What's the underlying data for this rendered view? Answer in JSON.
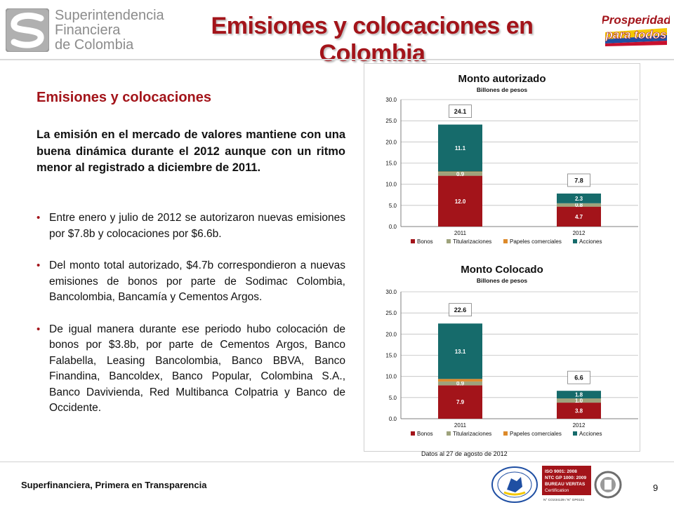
{
  "header": {
    "logo_lines": [
      "Superintendencia",
      "Financiera",
      "de Colombia"
    ],
    "title": "Emisiones y colocaciones en Colombia",
    "right_logo_lines": [
      "Prosperidad",
      "para todos"
    ]
  },
  "content": {
    "section_title": "Emisiones y colocaciones",
    "intro": "La emisión en el mercado de valores mantiene con una buena dinámica durante el 2012 aunque con un ritmo menor al registrado a diciembre de 2011.",
    "bullets": [
      "Entre enero y julio de 2012 se autorizaron nuevas emisiones por $7.8b y colocaciones por $6.6b.",
      "Del monto total autorizado, $4.7b correspondieron a nuevas emisiones de bonos por parte de Sodimac Colombia, Bancolombia, Bancamía y Cementos Argos.",
      "De igual manera durante ese periodo hubo colocación de bonos por $3.8b, por parte de Cementos Argos, Banco Falabella, Leasing Bancolombia, Banco BBVA, Banco Finandina, Bancoldex, Banco Popular, Colombina S.A., Banco Davivienda, Red Multibanca Colpatria y Banco de Occidente."
    ]
  },
  "colors": {
    "bonos": "#a3141a",
    "titularizaciones": "#9ea37c",
    "papeles": "#dd8a2a",
    "acciones": "#166b6b"
  },
  "chart_data": [
    {
      "type": "bar",
      "stacked": true,
      "title": "Monto autorizado",
      "subtitle": "Billones de pesos",
      "categories": [
        "2011",
        "2012"
      ],
      "ylim": [
        0,
        30
      ],
      "yticks": [
        "0.0",
        "5.0",
        "10.0",
        "15.0",
        "20.0",
        "25.0",
        "30.0"
      ],
      "grid": true,
      "legend": "bottom",
      "series": [
        {
          "name": "Bonos",
          "values": [
            12.0,
            4.7
          ],
          "labels": [
            "12.0",
            "4.7"
          ]
        },
        {
          "name": "Titularizaciones",
          "values": [
            0.9,
            0.8
          ],
          "labels": [
            "0.9",
            "0.8"
          ]
        },
        {
          "name": "Papeles comerciales",
          "values": [
            0.1,
            0.0
          ],
          "labels": [
            "",
            ""
          ]
        },
        {
          "name": "Acciones",
          "values": [
            11.1,
            2.3
          ],
          "labels": [
            "11.1",
            "2.3"
          ]
        }
      ],
      "totals": [
        24.1,
        7.8
      ],
      "total_labels": [
        "24.1",
        "7.8"
      ]
    },
    {
      "type": "bar",
      "stacked": true,
      "title": "Monto Colocado",
      "subtitle": "Billones de pesos",
      "categories": [
        "2011",
        "2012"
      ],
      "ylim": [
        0,
        30
      ],
      "yticks": [
        "0.0",
        "5.0",
        "10.0",
        "15.0",
        "20.0",
        "25.0",
        "30.0"
      ],
      "grid": true,
      "legend": "bottom",
      "series": [
        {
          "name": "Bonos",
          "values": [
            7.9,
            3.8
          ],
          "labels": [
            "7.9",
            "3.8"
          ]
        },
        {
          "name": "Titularizaciones",
          "values": [
            0.9,
            1.0
          ],
          "labels": [
            "0.9",
            "1.0"
          ]
        },
        {
          "name": "Papeles comerciales",
          "values": [
            0.6,
            0.0
          ],
          "labels": [
            "",
            ""
          ]
        },
        {
          "name": "Acciones",
          "values": [
            13.1,
            1.8
          ],
          "labels": [
            "13.1",
            "1.8"
          ]
        }
      ],
      "totals": [
        22.6,
        6.6
      ],
      "total_labels": [
        "22.6",
        "6.6"
      ]
    }
  ],
  "note": "Datos al 27 de agosto de 2012",
  "footer": {
    "tagline": "Superfinanciera, Primera en Transparencia",
    "page_number": "9",
    "cert_lines": [
      "ISO 9001: 2008",
      "NTC GP 1000: 2009",
      "BUREAU VERITAS",
      "Certification"
    ],
    "cert_numbers": "N° CO234139 / N° GP0151"
  }
}
